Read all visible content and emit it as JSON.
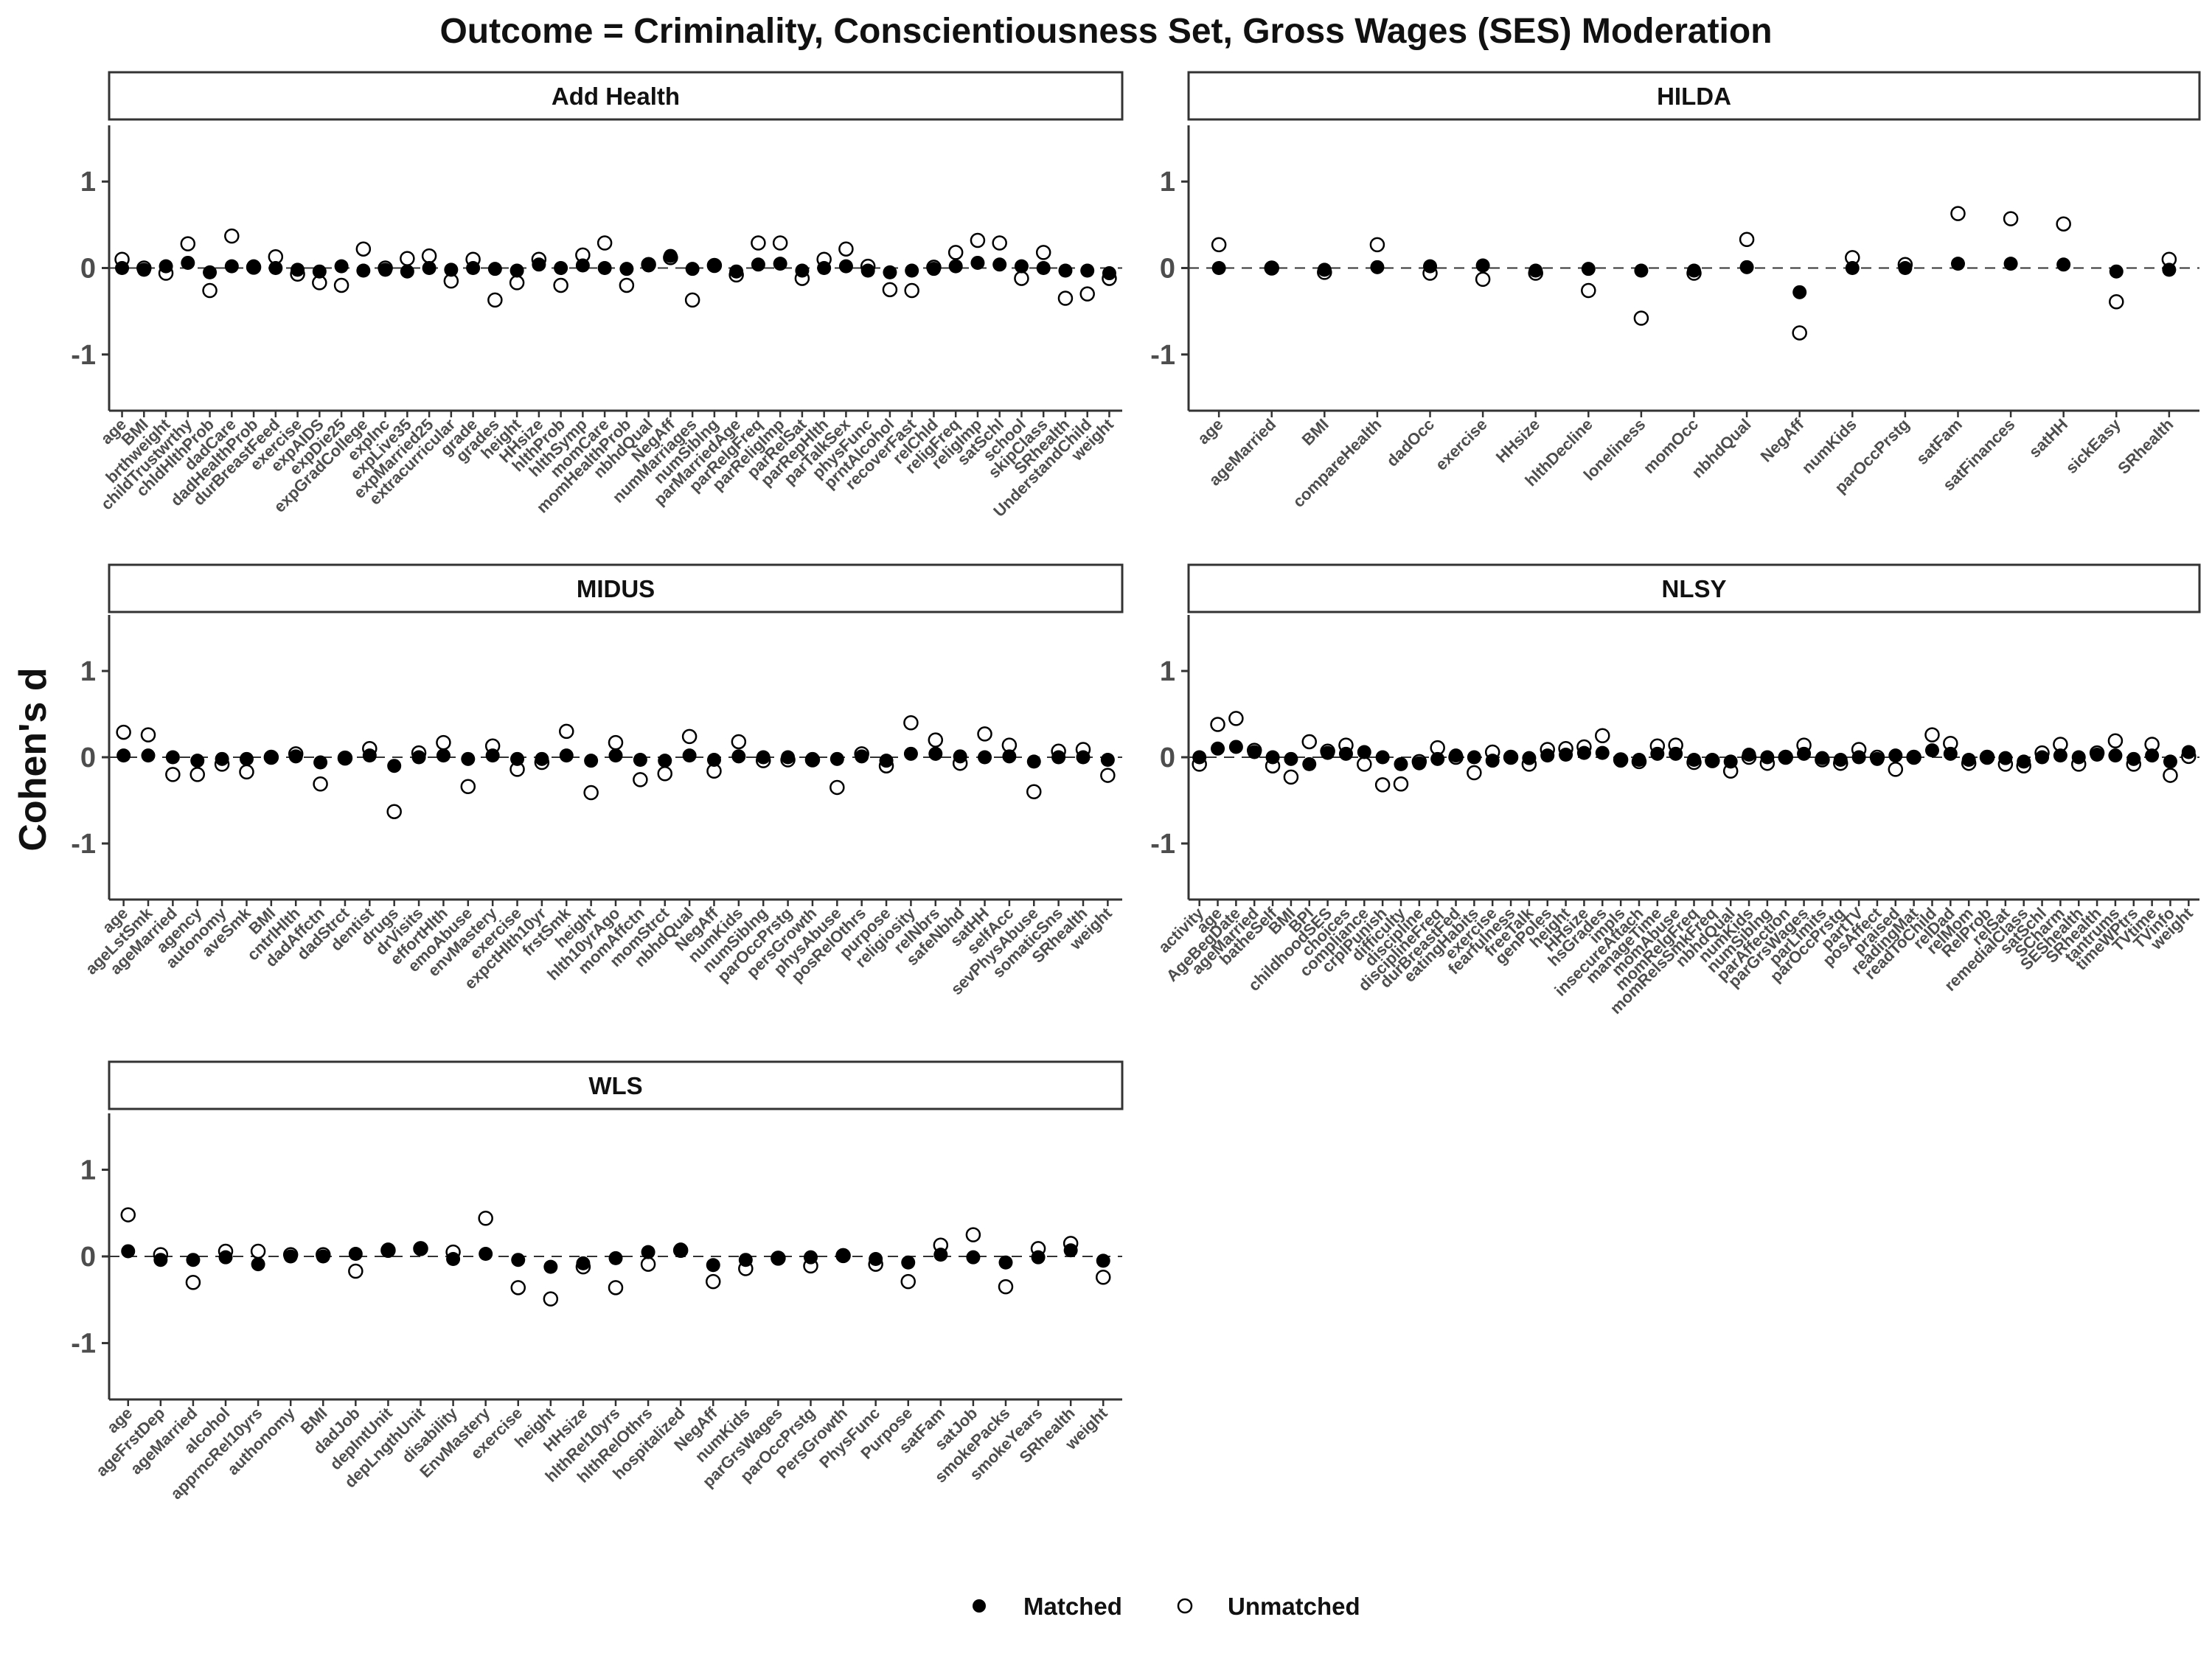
{
  "chart_data": {
    "type": "scatter",
    "title": "Outcome = Criminality, Conscientiousness Set, Gross Wages (SES) Moderation",
    "ylabel": "Cohen's d",
    "ylim": [
      -1.65,
      1.65
    ],
    "yticks": [
      -1,
      0,
      1
    ],
    "reference_line": 0,
    "legend": {
      "position": "bottom",
      "items": [
        "Matched",
        "Unmatched"
      ]
    },
    "series_styles": {
      "Matched": "filled circle",
      "Unmatched": "open circle"
    },
    "colors": {
      "points": "#000000",
      "grid_zero": "#333333",
      "axis": "#333333"
    },
    "panels": [
      {
        "name": "Add Health",
        "categories": [
          "age",
          "BMI",
          "brthweight",
          "childTrustwrthy",
          "chldHlthProb",
          "dadCare",
          "dadHealthProb",
          "durBreastFeed",
          "exercise",
          "expAIDS",
          "expDie25",
          "expGradCollege",
          "expInc",
          "expLive35",
          "expMarried25",
          "extracurricular",
          "grade",
          "grades",
          "height",
          "HHsize",
          "hlthProb",
          "hlthSymp",
          "momCare",
          "momHealthProb",
          "nbhdQual",
          "NegAff",
          "numMarriages",
          "numSiblng",
          "parMarriedAge",
          "parRelgFreq",
          "parReligImp",
          "parRelSat",
          "parRepHlth",
          "parTalkSex",
          "physFunc",
          "prntAlcohol",
          "recoverFast",
          "relChld",
          "religFreq",
          "religImp",
          "satSchl",
          "school",
          "skipClass",
          "SRhealth",
          "UnderstandChild",
          "weight"
        ],
        "matched": [
          0.0,
          -0.02,
          0.02,
          0.06,
          -0.05,
          0.02,
          0.02,
          0.0,
          -0.02,
          -0.04,
          0.02,
          -0.03,
          -0.02,
          -0.04,
          0.0,
          -0.02,
          0.0,
          -0.01,
          -0.03,
          0.04,
          0.0,
          0.03,
          0.0,
          -0.01,
          0.03,
          0.14,
          -0.01,
          0.03,
          -0.04,
          0.04,
          0.05,
          -0.03,
          0.0,
          0.02,
          -0.03,
          -0.05,
          -0.03,
          -0.01,
          0.02,
          0.06,
          0.04,
          0.02,
          0.0,
          -0.03,
          -0.03,
          -0.06
        ],
        "unmatched": [
          0.1,
          0.0,
          -0.06,
          0.28,
          -0.26,
          0.37,
          0.01,
          0.13,
          -0.07,
          -0.17,
          -0.2,
          0.22,
          0.0,
          0.11,
          0.14,
          -0.15,
          0.1,
          -0.37,
          -0.17,
          0.1,
          -0.2,
          0.15,
          0.29,
          -0.2,
          0.04,
          0.12,
          -0.37,
          0.03,
          -0.08,
          0.29,
          0.29,
          -0.12,
          0.1,
          0.22,
          0.02,
          -0.25,
          -0.26,
          0.01,
          0.18,
          0.32,
          0.29,
          -0.12,
          0.18,
          -0.35,
          -0.3,
          -0.12
        ]
      },
      {
        "name": "HILDA",
        "categories": [
          "age",
          "ageMarried",
          "BMI",
          "compareHealth",
          "dadOcc",
          "exercise",
          "HHsize",
          "hlthDecline",
          "loneliness",
          "momOcc",
          "nbhdQual",
          "NegAff",
          "numKids",
          "parOccPrstg",
          "satFam",
          "satFinances",
          "satHH",
          "sickEasy",
          "SRhealth"
        ],
        "matched": [
          0.0,
          0.0,
          -0.02,
          0.01,
          0.02,
          0.03,
          -0.03,
          -0.01,
          -0.03,
          -0.03,
          0.01,
          -0.28,
          0.0,
          0.0,
          0.05,
          0.05,
          0.04,
          -0.04,
          -0.02
        ],
        "unmatched": [
          0.27,
          0.0,
          -0.05,
          0.27,
          -0.06,
          -0.13,
          -0.06,
          -0.26,
          -0.58,
          -0.06,
          0.33,
          -0.75,
          0.12,
          0.04,
          0.63,
          0.57,
          0.51,
          -0.39,
          0.1
        ]
      },
      {
        "name": "MIDUS",
        "categories": [
          "age",
          "ageLstSmk",
          "ageMarried",
          "agency",
          "autonomy",
          "aveSmk",
          "BMI",
          "cntrlHlth",
          "dadAffctn",
          "dadStrct",
          "dentist",
          "drugs",
          "drVisits",
          "effortHlth",
          "emoAbuse",
          "envMastery",
          "exercise",
          "expctHlth10yr",
          "frstSmk",
          "height",
          "hlth10yrAgo",
          "momAffctn",
          "momStrct",
          "nbhdQual",
          "NegAff",
          "numKids",
          "numSiblng",
          "parOccPrstg",
          "persGrowth",
          "physAbuse",
          "posRelOthrs",
          "purpose",
          "religiosity",
          "relNbrs",
          "safeNbhd",
          "satHH",
          "selfAcc",
          "sevPhysAbuse",
          "somaticSns",
          "SRhealth",
          "weight"
        ],
        "matched": [
          0.02,
          0.02,
          0.0,
          -0.04,
          -0.02,
          -0.02,
          0.0,
          0.01,
          -0.06,
          -0.01,
          0.02,
          -0.1,
          0.0,
          0.02,
          -0.02,
          0.02,
          -0.02,
          -0.02,
          0.02,
          -0.04,
          0.02,
          -0.03,
          -0.04,
          0.02,
          -0.03,
          0.01,
          0.0,
          0.0,
          -0.02,
          -0.02,
          0.01,
          -0.04,
          0.04,
          0.04,
          0.01,
          0.0,
          0.01,
          -0.05,
          0.0,
          0.0,
          -0.03
        ],
        "unmatched": [
          0.29,
          0.26,
          -0.2,
          -0.2,
          -0.08,
          -0.17,
          0.0,
          0.04,
          -0.31,
          -0.01,
          0.1,
          -0.63,
          0.05,
          0.17,
          -0.34,
          0.13,
          -0.14,
          -0.06,
          0.3,
          -0.41,
          0.17,
          -0.26,
          -0.19,
          0.24,
          -0.16,
          0.18,
          -0.04,
          -0.03,
          -0.03,
          -0.35,
          0.04,
          -0.1,
          0.4,
          0.2,
          -0.07,
          0.27,
          0.14,
          -0.4,
          0.07,
          0.09,
          -0.21
        ]
      },
      {
        "name": "NLSY",
        "categories": [
          "activity",
          "age",
          "AgeBegDate",
          "ageMarried",
          "batheSelf",
          "BMI",
          "BPI",
          "childhoodSES",
          "choices",
          "compliance",
          "crplPunish",
          "difficulty",
          "discipline",
          "disciplineFreq",
          "durBreastFed",
          "eatingHabits",
          "exercise",
          "fearfulness",
          "freeTalk",
          "genPoles",
          "height",
          "HHsize",
          "hsGrades",
          "impls",
          "insecureAttach",
          "manageTime",
          "momAbuse",
          "momRelgFreq",
          "momRelsSmkFreq",
          "nbhdQual",
          "numKids",
          "numSiblng",
          "parAffection",
          "parGrsWages",
          "parLimits",
          "parOccPrstg",
          "partTV",
          "posAffect",
          "praised",
          "readingMat",
          "readToChild",
          "relDad",
          "relMom",
          "RelProb",
          "relSat",
          "remedialClass",
          "satSchl",
          "SCharm",
          "SEShealth",
          "SRhealth",
          "tantrums",
          "timeWPtrs",
          "TVtime",
          "TVinfo",
          "weight"
        ],
        "matched": [
          0.0,
          0.1,
          0.12,
          0.06,
          0.0,
          -0.02,
          -0.08,
          0.05,
          0.04,
          0.06,
          0.0,
          -0.08,
          -0.07,
          -0.02,
          0.02,
          0.0,
          -0.04,
          0.0,
          -0.01,
          0.02,
          0.03,
          0.05,
          0.05,
          -0.04,
          -0.03,
          0.04,
          0.04,
          -0.03,
          -0.03,
          -0.05,
          0.03,
          0.0,
          0.0,
          0.04,
          -0.01,
          -0.03,
          0.0,
          -0.02,
          0.02,
          0.0,
          0.08,
          0.04,
          -0.03,
          0.0,
          -0.01,
          -0.05,
          0.0,
          0.02,
          0.0,
          0.03,
          0.02,
          -0.02,
          0.02,
          -0.05,
          0.06
        ],
        "unmatched": [
          -0.08,
          0.38,
          0.45,
          0.08,
          -0.1,
          -0.23,
          0.18,
          0.07,
          0.14,
          -0.08,
          -0.32,
          -0.31,
          -0.05,
          0.11,
          0.0,
          -0.18,
          0.06,
          0.0,
          -0.08,
          0.09,
          0.1,
          0.12,
          0.25,
          -0.03,
          -0.05,
          0.13,
          0.14,
          -0.06,
          -0.04,
          -0.16,
          0.0,
          -0.07,
          0.0,
          0.14,
          -0.03,
          -0.07,
          0.09,
          0.0,
          -0.14,
          0.0,
          0.26,
          0.16,
          -0.07,
          0.0,
          -0.08,
          -0.1,
          0.05,
          0.15,
          -0.08,
          0.05,
          0.19,
          -0.08,
          0.15,
          -0.21,
          0.01
        ]
      },
      {
        "name": "WLS",
        "categories": [
          "age",
          "ageFrstDep",
          "ageMarried",
          "alcohol",
          "apprncRel10yrs",
          "authonomy",
          "BMI",
          "dadJob",
          "depIntUnit",
          "depLngthUnit",
          "disability",
          "EnvMastery",
          "exercise",
          "height",
          "HHsize",
          "hlthRel10yrs",
          "hlthRelOthrs",
          "hospitalized",
          "NegAff",
          "numKids",
          "parGrsWages",
          "parOccPrstg",
          "PersGrowth",
          "PhysFunc",
          "Purpose",
          "satFam",
          "satJob",
          "smokePacks",
          "smokeYears",
          "SRhealth",
          "weight"
        ],
        "matched": [
          0.06,
          -0.04,
          -0.04,
          -0.01,
          -0.09,
          0.0,
          0.0,
          0.03,
          0.08,
          0.09,
          -0.03,
          0.03,
          -0.04,
          -0.12,
          -0.08,
          -0.02,
          0.05,
          0.08,
          -0.1,
          -0.04,
          -0.02,
          -0.01,
          0.01,
          -0.03,
          -0.07,
          0.02,
          -0.01,
          -0.07,
          -0.01,
          0.07,
          -0.05
        ],
        "unmatched": [
          0.48,
          0.02,
          -0.3,
          0.06,
          0.06,
          0.02,
          0.02,
          -0.17,
          0.07,
          0.09,
          0.05,
          0.44,
          -0.36,
          -0.49,
          -0.12,
          -0.36,
          -0.09,
          0.07,
          -0.29,
          -0.14,
          -0.02,
          -0.11,
          0.01,
          -0.09,
          -0.29,
          0.13,
          0.25,
          -0.35,
          0.09,
          0.15,
          -0.24
        ]
      }
    ]
  }
}
